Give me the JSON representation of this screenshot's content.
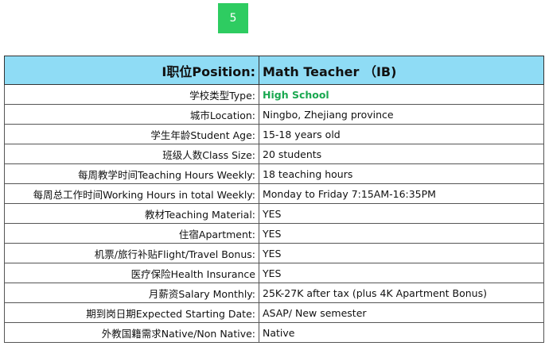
{
  "page_badge": "5",
  "header": {
    "label": "I职位Position:",
    "value": "Math Teacher （IB)"
  },
  "rows": [
    {
      "label": "学校类型Type:",
      "value": "High School"
    },
    {
      "label": "城市Location:",
      "value": "Ningbo, Zhejiang province"
    },
    {
      "label": "学生年龄Student Age:",
      "value": "15-18 years old"
    },
    {
      "label": "班级人数Class Size:",
      "value": "20 students"
    },
    {
      "label": "每周教学时间Teaching Hours Weekly:",
      "value": "18 teaching hours"
    },
    {
      "label": "每周总工作时间Working Hours in total Weekly:",
      "value": "Monday to Friday 7:15AM-16:35PM"
    },
    {
      "label": "教材Teaching Material:",
      "value": "YES"
    },
    {
      "label": "住宿Apartment:",
      "value": "YES"
    },
    {
      "label": "机票/旅行补贴Flight/Travel Bonus:",
      "value": "YES"
    },
    {
      "label": "医疗保险Health Insurance",
      "value": "YES"
    },
    {
      "label": "月薪资Salary Monthly:",
      "value": "25K-27K after tax (plus 4K Apartment Bonus)"
    },
    {
      "label": "期到岗日期Expected Starting Date:",
      "value": "ASAP/ New semester"
    },
    {
      "label": "外教国籍需求Native/Non Native:",
      "value": "Native"
    }
  ],
  "colors": {
    "header_bg": "#8fdcf5",
    "badge_bg": "#2ecc61",
    "highlight": "#1aa850"
  }
}
